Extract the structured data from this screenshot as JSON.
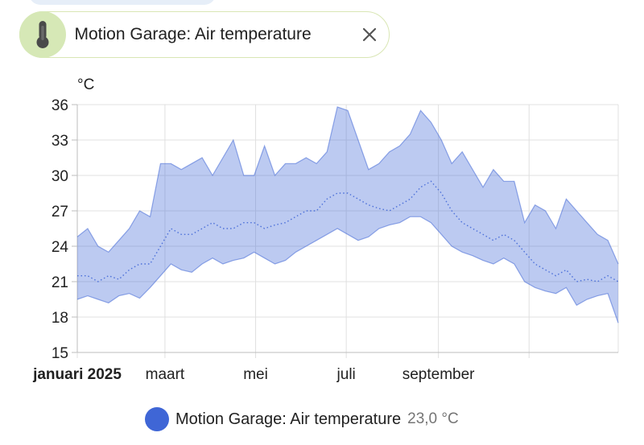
{
  "entity": {
    "name": "Motion Garage: Air temperature",
    "icon": "thermometer-icon",
    "close_icon": "close-icon",
    "accent": "#d6e8b6"
  },
  "chart_data": {
    "type": "line",
    "title": "",
    "xlabel": "",
    "ylabel": "°C",
    "ylim": [
      15,
      36
    ],
    "yticks": [
      15,
      18,
      21,
      24,
      27,
      30,
      33,
      36
    ],
    "xlim": [
      "2025-01-01",
      "2025-12-31"
    ],
    "xticks": [
      {
        "date": "2025-01-01",
        "label": "januari 2025",
        "bold": true
      },
      {
        "date": "2025-03-01",
        "label": "maart"
      },
      {
        "date": "2025-05-01",
        "label": "mei"
      },
      {
        "date": "2025-07-01",
        "label": "juli"
      },
      {
        "date": "2025-09-01",
        "label": "september"
      },
      {
        "date": "2025-11-01",
        "label": ""
      }
    ],
    "grid": true,
    "legend_position": "bottom",
    "series": [
      {
        "name": "Motion Garage: Air temperature",
        "color": "#3f66d6",
        "current_value": "23,0 °C",
        "x": [
          "2025-01-01",
          "2025-01-08",
          "2025-01-15",
          "2025-01-22",
          "2025-01-29",
          "2025-02-05",
          "2025-02-12",
          "2025-02-19",
          "2025-02-26",
          "2025-03-05",
          "2025-03-12",
          "2025-03-19",
          "2025-03-26",
          "2025-04-02",
          "2025-04-09",
          "2025-04-16",
          "2025-04-23",
          "2025-04-30",
          "2025-05-07",
          "2025-05-14",
          "2025-05-21",
          "2025-05-28",
          "2025-06-04",
          "2025-06-11",
          "2025-06-18",
          "2025-06-25",
          "2025-07-02",
          "2025-07-09",
          "2025-07-16",
          "2025-07-23",
          "2025-07-30",
          "2025-08-06",
          "2025-08-13",
          "2025-08-20",
          "2025-08-27",
          "2025-09-03",
          "2025-09-10",
          "2025-09-17",
          "2025-09-24",
          "2025-10-01",
          "2025-10-08",
          "2025-10-15",
          "2025-10-22",
          "2025-10-29",
          "2025-11-05",
          "2025-11-12",
          "2025-11-19",
          "2025-11-26",
          "2025-12-03",
          "2025-12-10",
          "2025-12-17",
          "2025-12-24",
          "2025-12-31"
        ],
        "min": [
          19.5,
          19.8,
          19.5,
          19.2,
          19.8,
          20,
          19.6,
          20.5,
          21.5,
          22.5,
          22,
          21.8,
          22.5,
          23,
          22.5,
          22.8,
          23,
          23.5,
          23,
          22.5,
          22.8,
          23.5,
          24,
          24.5,
          25,
          25.5,
          25,
          24.5,
          24.8,
          25.5,
          25.8,
          26,
          26.5,
          26.5,
          26,
          25,
          24,
          23.5,
          23.2,
          22.8,
          22.5,
          23,
          22.5,
          21,
          20.5,
          20.2,
          20,
          20.5,
          19,
          19.5,
          19.8,
          20,
          17.5
        ],
        "avg": [
          21.5,
          21.5,
          21,
          21.5,
          21.2,
          22,
          22.5,
          22.5,
          24,
          25.5,
          25,
          25,
          25.5,
          26,
          25.5,
          25.5,
          26,
          26,
          25.5,
          25.8,
          26,
          26.5,
          27,
          27,
          28,
          28.5,
          28.5,
          28,
          27.5,
          27.2,
          27,
          27.5,
          28,
          29,
          29.5,
          28.5,
          27,
          26,
          25.5,
          25,
          24.5,
          25,
          24.5,
          23.5,
          22.5,
          22,
          21.5,
          22,
          21,
          21.2,
          21,
          21.5,
          21
        ],
        "max": [
          24.8,
          25.5,
          24,
          23.5,
          24.5,
          25.5,
          27,
          26.5,
          31,
          31,
          30.5,
          31,
          31.5,
          30,
          31.5,
          33,
          30,
          30,
          32.5,
          30,
          31,
          31,
          31.5,
          31,
          32,
          35.8,
          35.5,
          33,
          30.5,
          31,
          32,
          32.5,
          33.5,
          35.5,
          34.5,
          33,
          31,
          32,
          30.5,
          29,
          30.5,
          29.5,
          29.5,
          26,
          27.5,
          27,
          25.5,
          28,
          27,
          26,
          25,
          24.5,
          22.5
        ]
      }
    ]
  }
}
